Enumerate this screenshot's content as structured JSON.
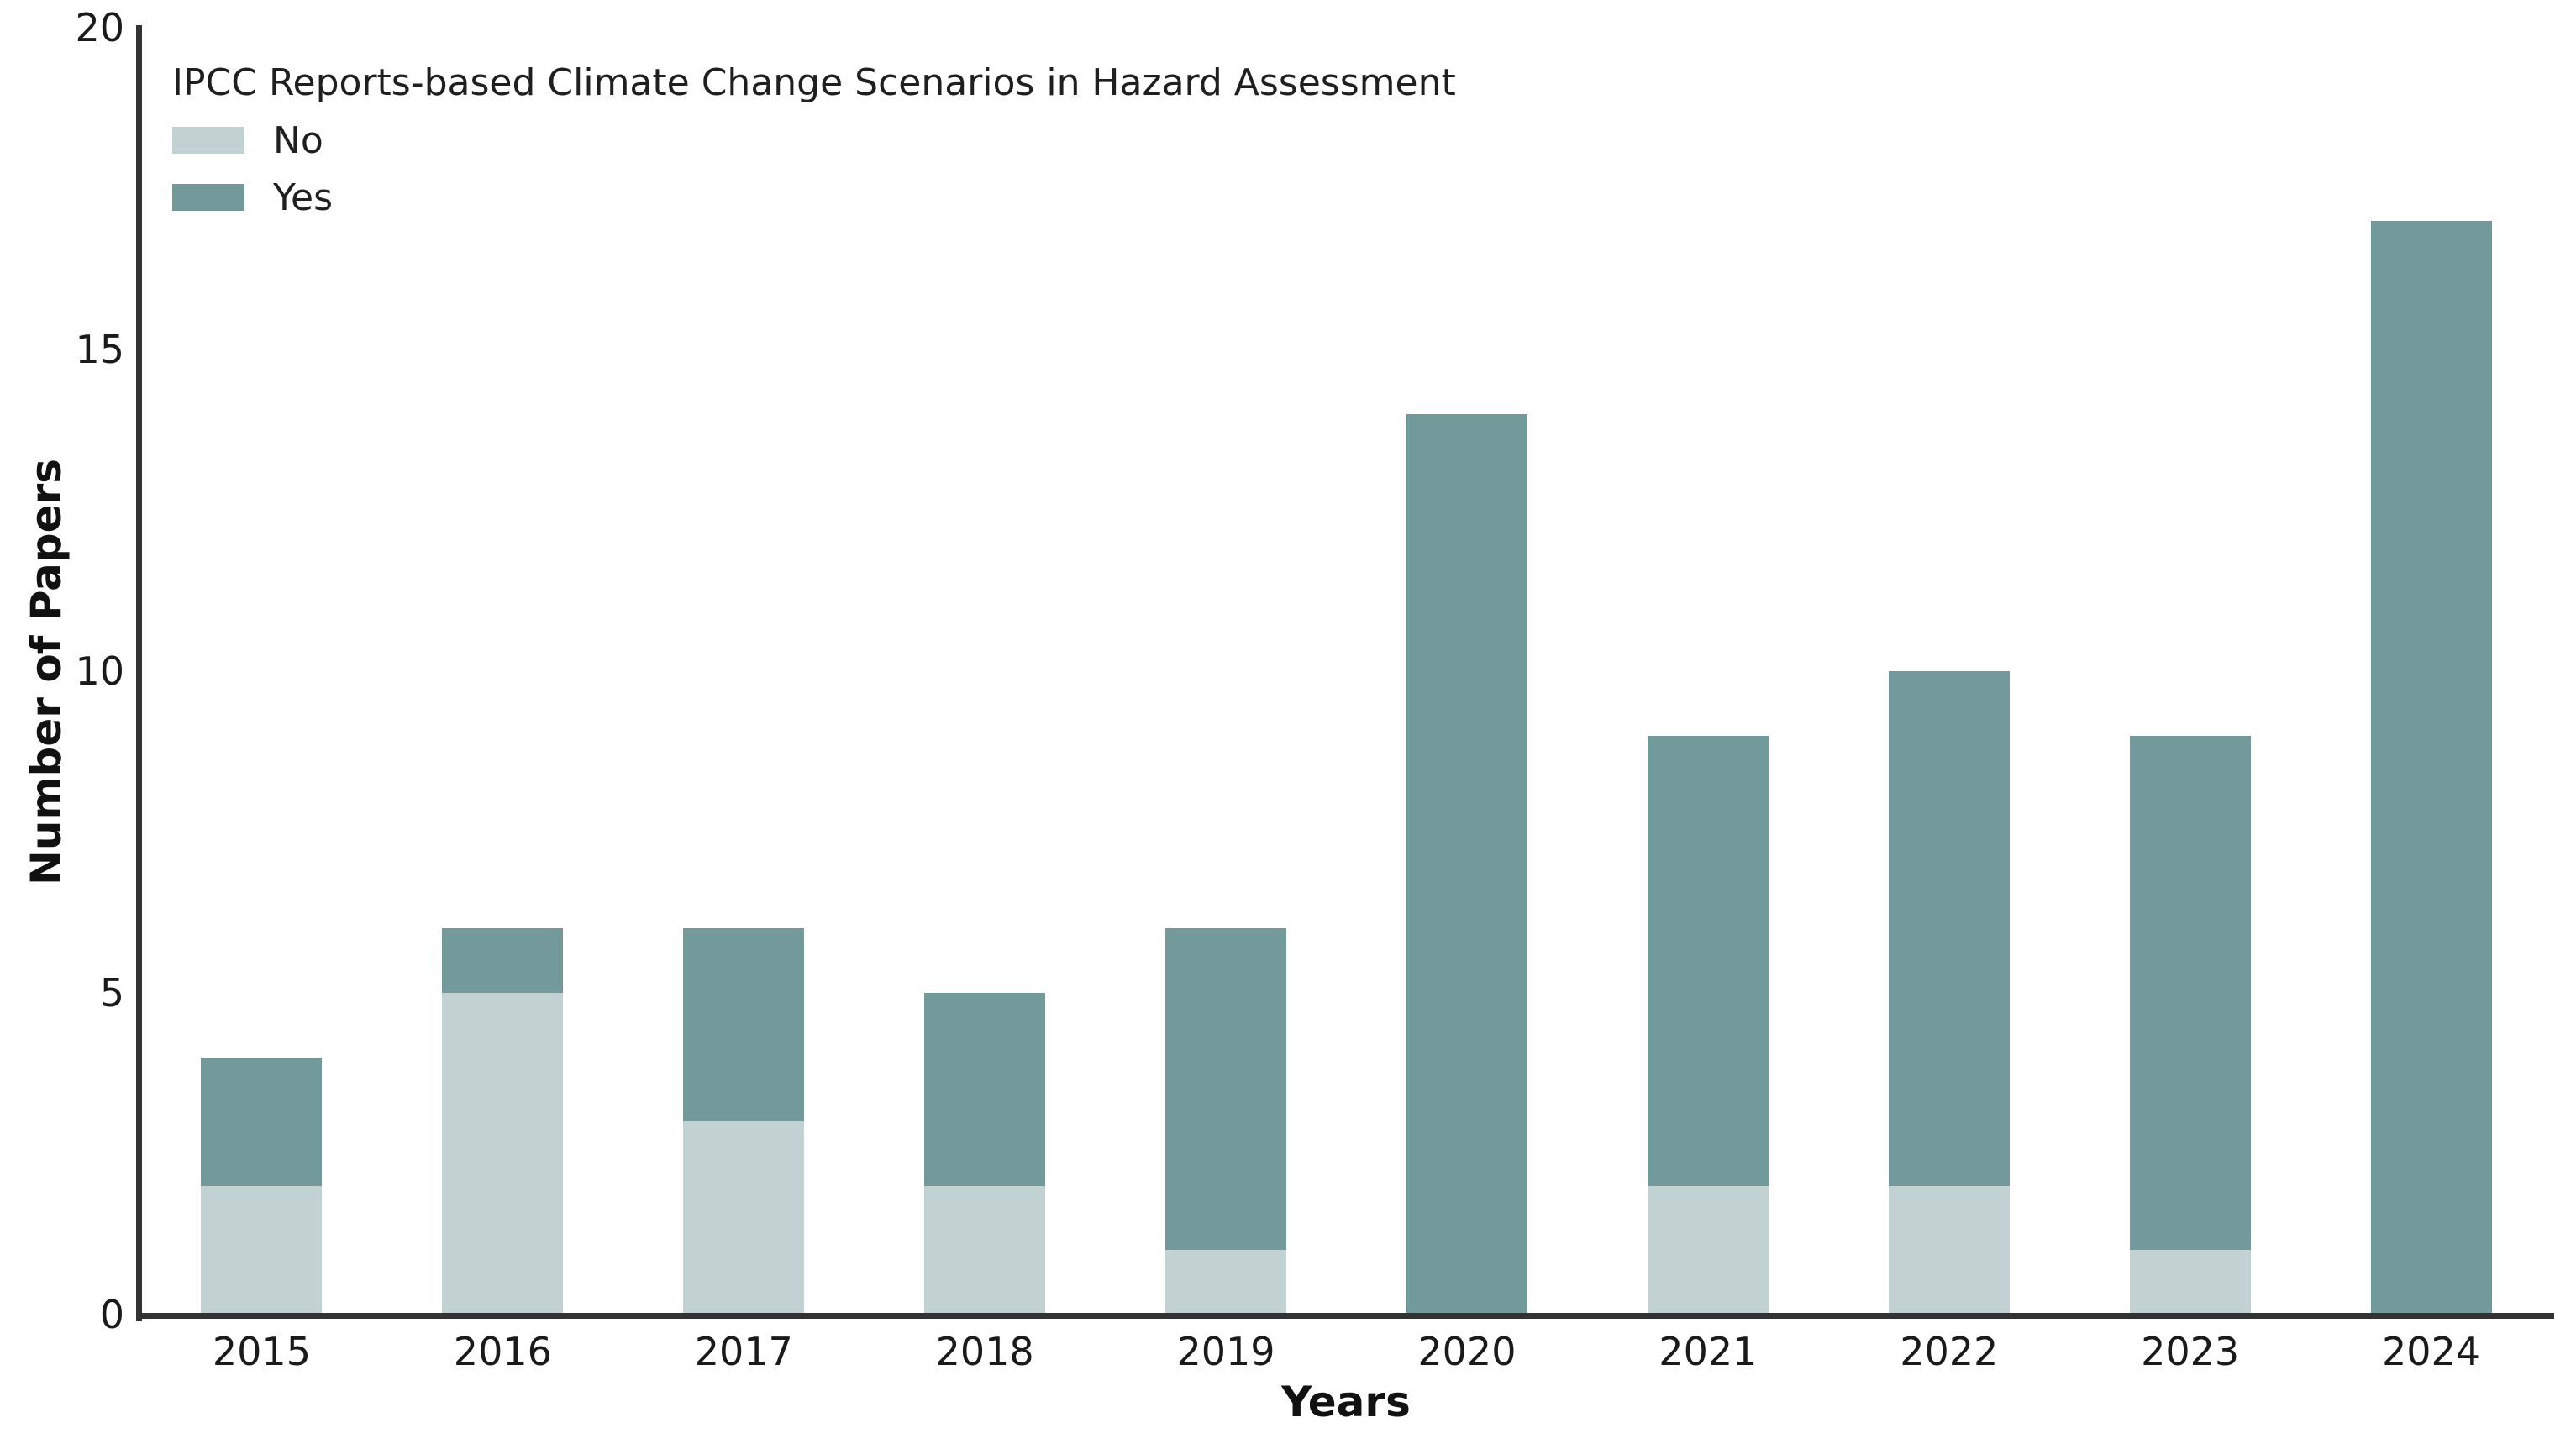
{
  "chart_data": {
    "type": "bar",
    "stacked": true,
    "categories": [
      "2015",
      "2016",
      "2017",
      "2018",
      "2019",
      "2020",
      "2021",
      "2022",
      "2023",
      "2024"
    ],
    "series": [
      {
        "name": "No",
        "color": "#c2d1d1",
        "values": [
          2,
          5,
          3,
          2,
          1,
          0,
          2,
          2,
          1,
          0
        ]
      },
      {
        "name": "Yes",
        "color": "#739a9b",
        "values": [
          2,
          1,
          3,
          3,
          5,
          14,
          7,
          8,
          8,
          17
        ]
      }
    ],
    "totals": [
      4,
      6,
      6,
      5,
      6,
      14,
      9,
      10,
      9,
      17
    ],
    "xlabel": "Years",
    "ylabel": "Number of Papers",
    "ylim": [
      0,
      20
    ],
    "yticks": [
      0,
      5,
      10,
      15,
      20
    ],
    "legend_title": "IPCC Reports-based Climate Change Scenarios in Hazard Assessment",
    "legend_position": "upper-left",
    "grid": false
  },
  "colors": {
    "background": "#ffffff",
    "axis": "#333333",
    "text": "#1a1a1a",
    "series_no": "#c2d1d1",
    "series_yes": "#739a9b"
  }
}
